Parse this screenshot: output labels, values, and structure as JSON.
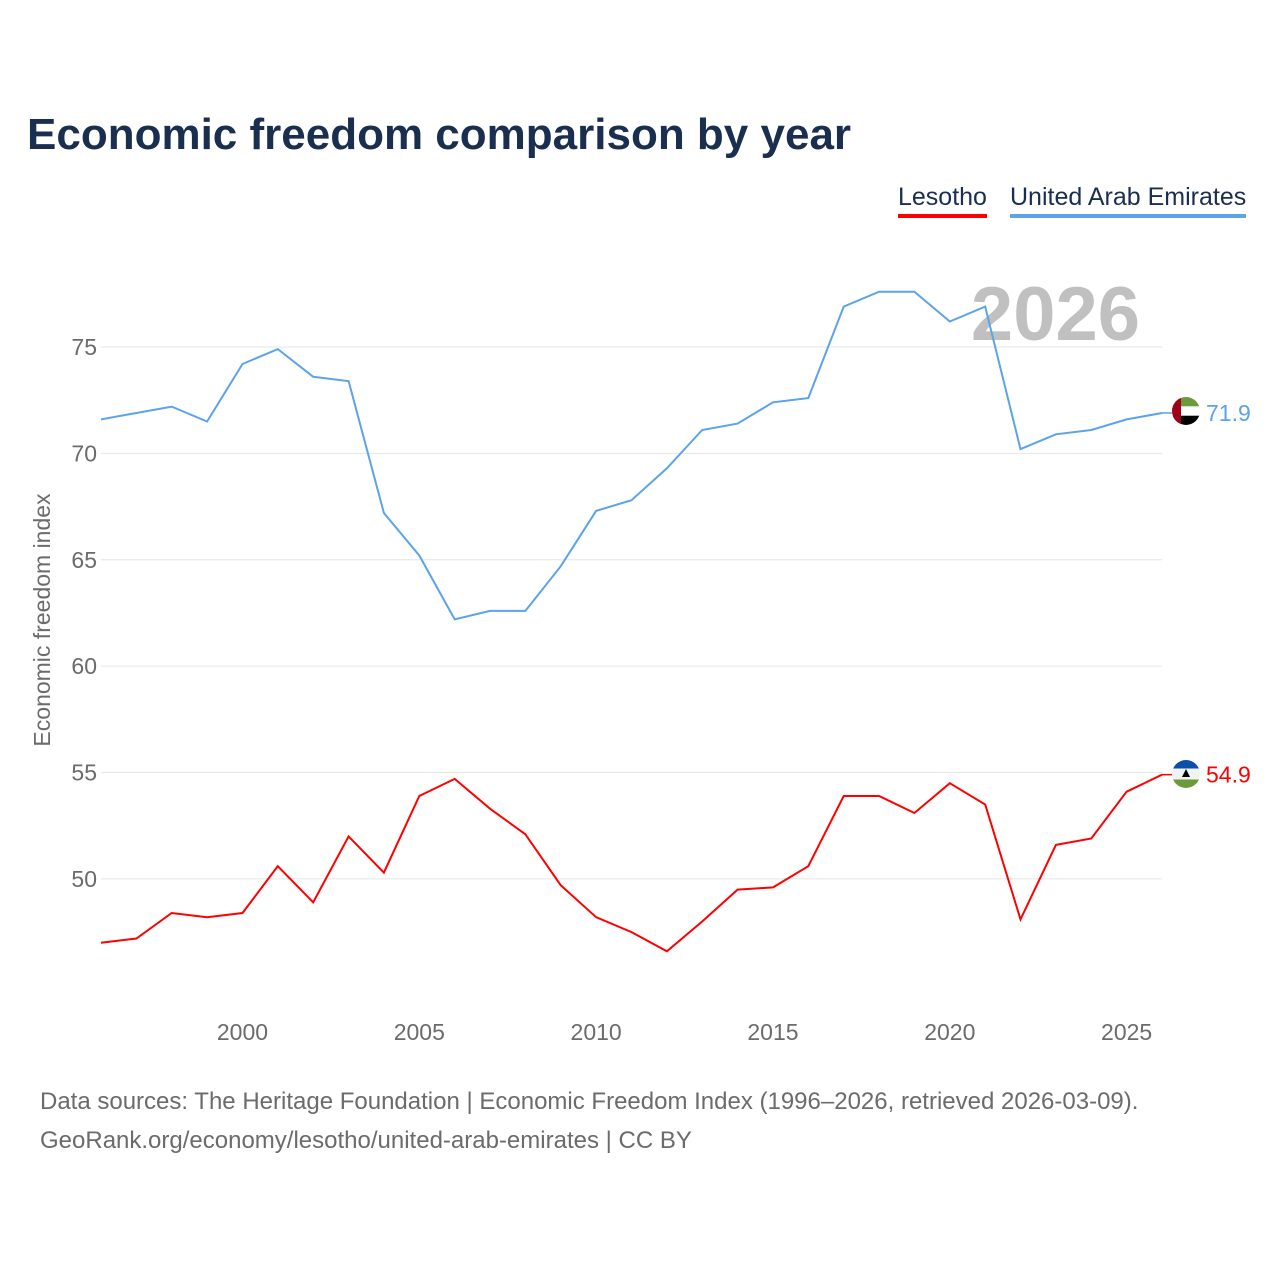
{
  "chart_data": {
    "type": "line",
    "title": "Economic freedom comparison by year",
    "xlabel": "",
    "ylabel": "Economic freedom index",
    "xlim": [
      1996,
      2026
    ],
    "ylim": [
      44.31,
      80.03
    ],
    "x_ticks": [
      2000,
      2005,
      2010,
      2015,
      2020,
      2025
    ],
    "y_ticks": [
      50,
      55,
      60,
      65,
      70,
      75
    ],
    "grid": true,
    "legend_position": "top-right",
    "year_watermark": "2026",
    "x": [
      1996,
      1997,
      1998,
      1999,
      2000,
      2001,
      2002,
      2003,
      2004,
      2005,
      2006,
      2007,
      2008,
      2009,
      2010,
      2011,
      2012,
      2013,
      2014,
      2015,
      2016,
      2017,
      2018,
      2019,
      2020,
      2021,
      2022,
      2023,
      2024,
      2025,
      2026
    ],
    "series": [
      {
        "name": "Lesotho",
        "color": "#ff0000",
        "end_label": "54.9",
        "flag": "lesotho-flag",
        "values": [
          47.0,
          47.2,
          48.4,
          48.2,
          48.4,
          50.6,
          48.9,
          52.0,
          50.3,
          53.9,
          54.7,
          53.3,
          52.1,
          49.7,
          48.2,
          47.5,
          46.6,
          48.0,
          49.5,
          49.6,
          50.6,
          53.9,
          53.9,
          53.1,
          54.5,
          53.5,
          48.1,
          51.6,
          51.9,
          54.1,
          54.9
        ]
      },
      {
        "name": "United Arab Emirates",
        "color": "#5ba3ea",
        "end_label": "71.9",
        "flag": "uae-flag",
        "values": [
          71.6,
          71.9,
          72.2,
          71.5,
          74.2,
          74.9,
          73.6,
          73.4,
          67.2,
          65.2,
          62.2,
          62.6,
          62.6,
          64.7,
          67.3,
          67.8,
          69.3,
          71.1,
          71.4,
          72.4,
          72.6,
          76.9,
          77.6,
          77.6,
          76.2,
          76.9,
          70.2,
          70.9,
          71.1,
          71.6,
          71.9
        ]
      }
    ]
  },
  "legend": {
    "lesotho": "Lesotho",
    "uae": "United Arab Emirates"
  },
  "footer": {
    "line1": "Data sources: The Heritage Foundation | Economic Freedom Index (1996–2026, retrieved 2026-03-09).",
    "line2": "GeoRank.org/economy/lesotho/united-arab-emirates | CC BY"
  }
}
